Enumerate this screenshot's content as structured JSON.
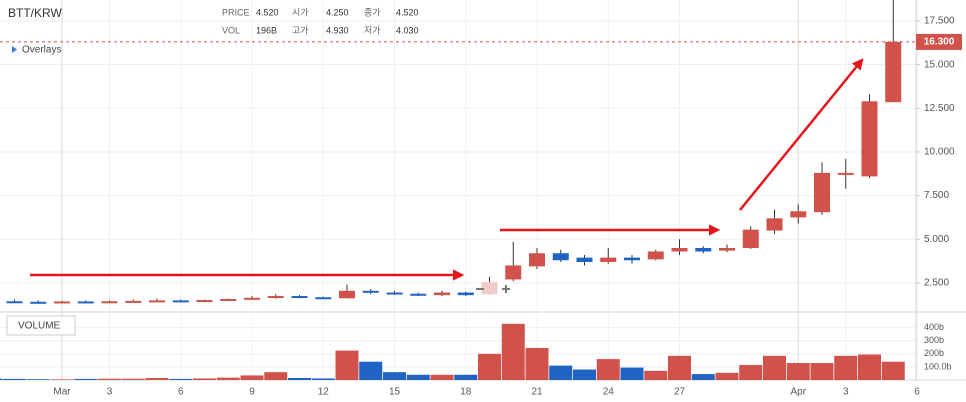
{
  "header": {
    "pair": "BTT/KRW",
    "price_label": "PRICE",
    "price": "4.520",
    "open_label": "시가",
    "open": "4.250",
    "close_label": "종가",
    "close": "4.520",
    "vol_label": "VOL",
    "vol": "196B",
    "high_label": "고가",
    "high": "4.930",
    "low_label": "저가",
    "low": "4.030",
    "overlays": "Overlays",
    "volume_pane": "VOLUME"
  },
  "chart_data": [
    {
      "type": "candlestick",
      "categories": [
        null,
        null,
        null,
        "Mar",
        null,
        "3",
        null,
        null,
        "6",
        null,
        null,
        "9",
        null,
        null,
        "12",
        null,
        null,
        "15",
        null,
        null,
        "18",
        null,
        null,
        "21",
        null,
        null,
        "24",
        null,
        null,
        "27",
        null,
        null,
        null,
        null,
        "Apr",
        null,
        "3",
        null,
        null,
        "6"
      ],
      "open": [
        1.5,
        1.45,
        1.42,
        1.4,
        1.44,
        1.42,
        1.45,
        1.47,
        1.5,
        1.48,
        1.52,
        1.58,
        1.65,
        1.75,
        1.68,
        1.62,
        2.05,
        1.95,
        1.88,
        1.8,
        1.95,
        1.85,
        2.7,
        3.45,
        4.2,
        3.95,
        3.7,
        3.95,
        3.85,
        4.3,
        4.5,
        4.35,
        4.5,
        5.5,
        6.25,
        6.55,
        8.7,
        8.6,
        12.85,
        null
      ],
      "high": [
        1.55,
        1.55,
        1.5,
        1.48,
        1.5,
        1.5,
        1.55,
        1.6,
        1.55,
        1.55,
        1.6,
        1.75,
        1.85,
        1.8,
        1.72,
        2.4,
        2.15,
        2.05,
        1.95,
        2.05,
        2.0,
        2.85,
        4.85,
        4.5,
        4.4,
        4.1,
        4.5,
        4.1,
        4.4,
        5.0,
        4.6,
        4.7,
        5.75,
        6.7,
        7.0,
        9.4,
        9.6,
        13.3,
        18.8,
        null
      ],
      "low": [
        1.4,
        1.4,
        1.38,
        1.38,
        1.4,
        1.4,
        1.42,
        1.4,
        1.45,
        1.42,
        1.48,
        1.52,
        1.6,
        1.62,
        1.6,
        1.6,
        1.85,
        1.8,
        1.75,
        1.75,
        1.75,
        1.8,
        2.6,
        3.3,
        3.7,
        3.5,
        3.6,
        3.6,
        3.8,
        4.1,
        4.2,
        4.25,
        4.45,
        5.3,
        5.9,
        6.4,
        7.9,
        8.5,
        12.85,
        null
      ],
      "close": [
        1.45,
        1.42,
        1.4,
        1.44,
        1.42,
        1.45,
        1.47,
        1.5,
        1.48,
        1.52,
        1.58,
        1.65,
        1.75,
        1.68,
        1.62,
        2.05,
        1.95,
        1.88,
        1.8,
        1.95,
        1.8,
        2.55,
        3.5,
        4.2,
        3.8,
        3.7,
        3.95,
        3.8,
        4.3,
        4.5,
        4.3,
        4.5,
        5.55,
        6.2,
        6.6,
        8.8,
        8.8,
        12.9,
        16.3,
        null
      ],
      "up_color": "#d0524a",
      "down_color": "#1f64c4",
      "ylim": [
        0.95,
        18.7
      ],
      "yticks": [
        {
          "value": 2.5,
          "label": "2.500"
        },
        {
          "value": 5,
          "label": "5.000"
        },
        {
          "value": 7.5,
          "label": "7.500"
        },
        {
          "value": 10,
          "label": "10.000"
        },
        {
          "value": 12.5,
          "label": "12.500"
        },
        {
          "value": 15,
          "label": "15.000"
        },
        {
          "value": 17.5,
          "label": "17.500"
        }
      ],
      "last_price": {
        "value": 16.3,
        "label": "16.300"
      },
      "grid": true
    },
    {
      "type": "bar",
      "values": [
        10,
        8,
        6,
        5,
        8,
        10,
        10,
        15,
        8,
        12,
        18,
        35,
        60,
        15,
        12,
        225,
        140,
        60,
        40,
        40,
        40,
        200,
        430,
        245,
        110,
        80,
        160,
        95,
        70,
        185,
        45,
        55,
        115,
        185,
        130,
        130,
        185,
        195,
        140,
        null
      ],
      "ylim": [
        0,
        505
      ],
      "yticks": [
        {
          "value": 100,
          "label": "100.0b"
        },
        {
          "value": 200,
          "label": "200b"
        },
        {
          "value": 300,
          "label": "300b"
        },
        {
          "value": 400,
          "label": "400b"
        }
      ],
      "grid": true
    }
  ]
}
